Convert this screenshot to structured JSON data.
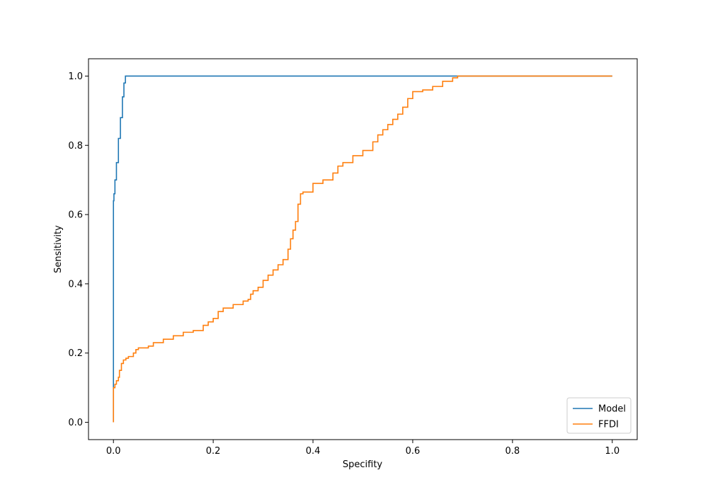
{
  "chart_data": {
    "type": "line",
    "title": "",
    "xlabel": "Specifity",
    "ylabel": "Sensitivity",
    "xlim": [
      -0.05,
      1.05
    ],
    "ylim": [
      -0.05,
      1.05
    ],
    "x_ticks": [
      0.0,
      0.2,
      0.4,
      0.6,
      0.8,
      1.0
    ],
    "y_ticks": [
      0.0,
      0.2,
      0.4,
      0.6,
      0.8,
      1.0
    ],
    "x_tick_labels": [
      "0.0",
      "0.2",
      "0.4",
      "0.6",
      "0.8",
      "1.0"
    ],
    "y_tick_labels": [
      "0.0",
      "0.2",
      "0.4",
      "0.6",
      "0.8",
      "1.0"
    ],
    "grid": false,
    "legend_position": "lower-right",
    "series": [
      {
        "name": "Model",
        "color": "#1f77b4",
        "x": [
          0.0,
          0.0,
          0.0,
          0.001,
          0.003,
          0.006,
          0.01,
          0.014,
          0.018,
          0.021,
          0.024,
          0.024,
          0.3,
          0.6,
          0.69,
          0.8,
          1.0
        ],
        "y": [
          0.0,
          0.1,
          0.64,
          0.66,
          0.7,
          0.75,
          0.82,
          0.88,
          0.94,
          0.98,
          1.0,
          1.0,
          1.0,
          1.0,
          1.0,
          1.0,
          1.0
        ]
      },
      {
        "name": "FFDI",
        "color": "#ff7f0e",
        "x": [
          0.0,
          0.0,
          0.003,
          0.006,
          0.01,
          0.012,
          0.016,
          0.02,
          0.025,
          0.03,
          0.04,
          0.045,
          0.05,
          0.07,
          0.08,
          0.1,
          0.12,
          0.14,
          0.16,
          0.18,
          0.19,
          0.2,
          0.21,
          0.22,
          0.24,
          0.26,
          0.27,
          0.275,
          0.28,
          0.29,
          0.3,
          0.31,
          0.32,
          0.33,
          0.34,
          0.35,
          0.355,
          0.36,
          0.365,
          0.37,
          0.375,
          0.38,
          0.4,
          0.42,
          0.44,
          0.45,
          0.46,
          0.48,
          0.5,
          0.52,
          0.53,
          0.54,
          0.55,
          0.56,
          0.57,
          0.58,
          0.59,
          0.6,
          0.62,
          0.64,
          0.66,
          0.68,
          0.69,
          1.0
        ],
        "y": [
          0.0,
          0.1,
          0.11,
          0.12,
          0.13,
          0.15,
          0.17,
          0.18,
          0.185,
          0.19,
          0.2,
          0.21,
          0.215,
          0.22,
          0.23,
          0.24,
          0.25,
          0.26,
          0.265,
          0.28,
          0.29,
          0.3,
          0.32,
          0.33,
          0.34,
          0.35,
          0.355,
          0.37,
          0.38,
          0.39,
          0.41,
          0.425,
          0.44,
          0.455,
          0.47,
          0.5,
          0.53,
          0.555,
          0.58,
          0.63,
          0.66,
          0.665,
          0.69,
          0.7,
          0.72,
          0.74,
          0.75,
          0.77,
          0.785,
          0.81,
          0.83,
          0.845,
          0.86,
          0.875,
          0.89,
          0.91,
          0.935,
          0.955,
          0.96,
          0.97,
          0.985,
          0.995,
          1.0,
          1.0
        ]
      }
    ]
  }
}
